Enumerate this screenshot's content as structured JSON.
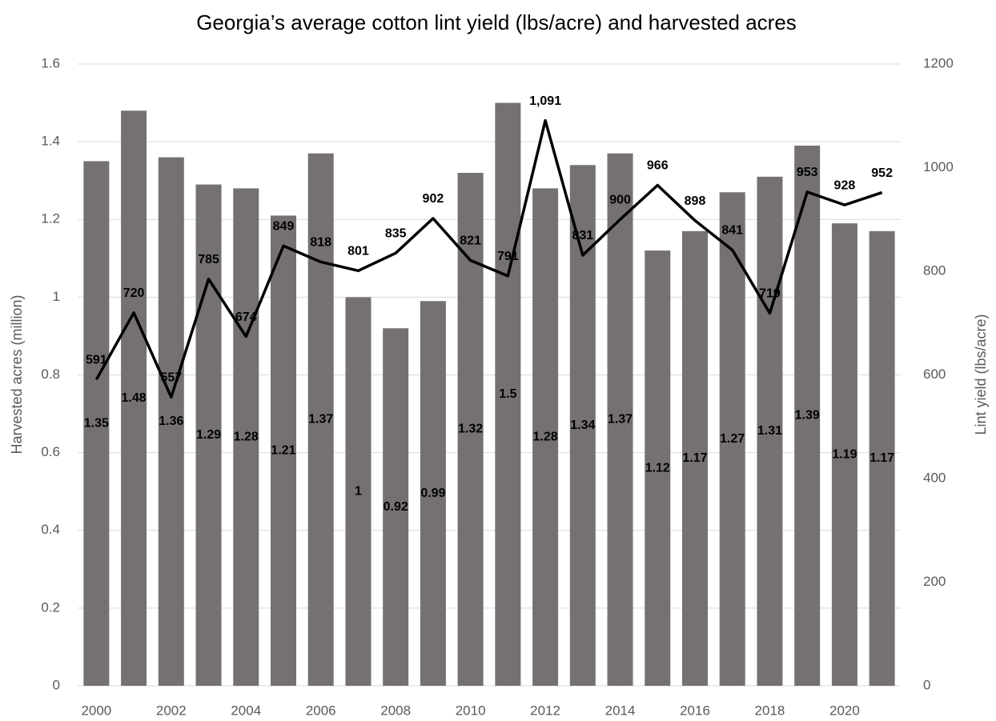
{
  "chart_data": {
    "type": "bar-line",
    "title": "Georgia’s average cotton lint yield (lbs/acre) and harvested acres",
    "ylabel": "Harvested acres (million)",
    "y2label": "Lint yield (lbs/acre)",
    "categories": [
      "2000",
      null,
      "2002",
      null,
      "2004",
      null,
      "2006",
      null,
      "2008",
      null,
      "2010",
      null,
      "2012",
      null,
      "2014",
      null,
      "2016",
      null,
      "2018",
      null,
      "2020",
      null
    ],
    "series": [
      {
        "name": "Harvested acres",
        "type": "bar",
        "color": "#767171",
        "values": [
          1.35,
          1.48,
          1.36,
          1.29,
          1.28,
          1.21,
          1.37,
          1,
          0.92,
          0.99,
          1.32,
          1.5,
          1.28,
          1.34,
          1.37,
          1.12,
          1.17,
          1.27,
          1.31,
          1.39,
          1.19,
          1.17
        ]
      },
      {
        "name": "Lint yield",
        "type": "line",
        "color": "#000000",
        "axis": "y2",
        "values": [
          591,
          720,
          557,
          785,
          674,
          849,
          818,
          801,
          835,
          902,
          821,
          791,
          1091,
          831,
          900,
          966,
          898,
          841,
          719,
          953,
          928,
          952
        ],
        "value_labels": [
          "591",
          "720",
          "557",
          "785",
          "674",
          "849",
          "818",
          "801",
          "835",
          "902",
          "821",
          "791",
          "1,091",
          "831",
          "900",
          "966",
          "898",
          "841",
          "719",
          "953",
          "928",
          "952"
        ]
      }
    ],
    "ylim": [
      0,
      1.6
    ],
    "yticks": [
      0,
      0.2,
      0.4,
      0.6,
      0.8,
      1,
      1.2,
      1.4,
      1.6
    ],
    "y2lim": [
      0,
      1200
    ],
    "y2ticks": [
      0,
      200,
      400,
      600,
      800,
      1000,
      1200
    ],
    "grid": true
  }
}
